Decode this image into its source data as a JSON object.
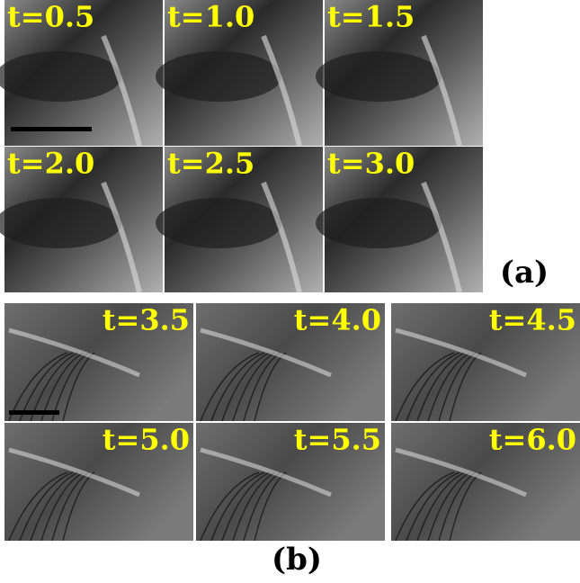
{
  "figure": {
    "a": {
      "label": "(a)",
      "frames": [
        "t=0.5",
        "t=1.0",
        "t=1.5",
        "t=2.0",
        "t=2.5",
        "t=3.0"
      ]
    },
    "b": {
      "label": "(b)",
      "frames": [
        "t=3.5",
        "t=4.0",
        "t=4.5",
        "t=5.0",
        "t=5.5",
        "t=6.0"
      ]
    }
  }
}
